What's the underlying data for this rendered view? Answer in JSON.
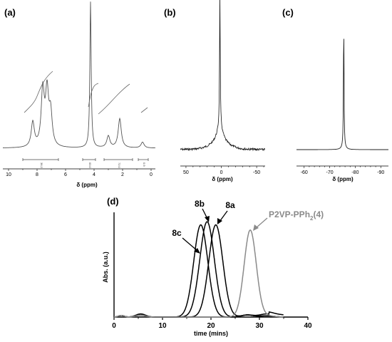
{
  "chart_data": [
    {
      "panel": "(a)",
      "type": "line",
      "xlabel": "δ (ppm)",
      "x_ticks": [
        "10",
        "8",
        "6",
        "4",
        "2",
        "0"
      ],
      "xlim": [
        10.4,
        -0.3
      ],
      "x_reversed": true,
      "peaks": [
        {
          "ppm": 8.3,
          "height": 0.17
        },
        {
          "ppm": 7.6,
          "height": 0.38
        },
        {
          "ppm": 7.3,
          "height": 0.36
        },
        {
          "ppm": 7.05,
          "height": 0.22
        },
        {
          "ppm": 4.25,
          "height": 1.0
        },
        {
          "ppm": 3.0,
          "height": 0.08
        },
        {
          "ppm": 2.2,
          "height": 0.2
        },
        {
          "ppm": 0.6,
          "height": 0.04
        }
      ],
      "integrals": [
        {
          "label": "36.2",
          "from": 9.0,
          "to": 6.5
        },
        {
          "label": "00.0",
          "from": 4.8,
          "to": 3.9
        },
        {
          "label": "72.0",
          "from": 3.3,
          "to": 1.3
        },
        {
          "label": "0.9",
          "from": 0.9,
          "to": 0.2
        }
      ]
    },
    {
      "panel": "(b)",
      "type": "line",
      "xlabel": "δ (ppm)",
      "x_ticks": [
        "50",
        "0",
        "-50"
      ],
      "xlim": [
        58,
        -62
      ],
      "x_reversed": true,
      "peaks": [
        {
          "ppm": 2,
          "height": 1.0,
          "broad_base": true
        }
      ]
    },
    {
      "panel": "(c)",
      "type": "line",
      "xlabel": "δ (ppm)",
      "x_ticks": [
        "-60",
        "-70",
        "-80",
        "-90"
      ],
      "xlim": [
        -57,
        -93
      ],
      "x_reversed": true,
      "peaks": [
        {
          "ppm": -75.5,
          "height": 1.0
        }
      ]
    },
    {
      "panel": "(d)",
      "type": "line",
      "xlabel": "time (mins)",
      "ylabel": "Abs. (a.u.)",
      "x_ticks": [
        "0",
        "10",
        "20",
        "30",
        "40"
      ],
      "xlim": [
        0,
        40
      ],
      "series": [
        {
          "name": "8c",
          "peak_time": 17.9,
          "height": 0.88,
          "color": "#000000"
        },
        {
          "name": "8b",
          "peak_time": 19.2,
          "height": 0.91,
          "color": "#000000"
        },
        {
          "name": "8a",
          "peak_time": 21.0,
          "height": 0.88,
          "color": "#000000"
        },
        {
          "name": "P2VP-PPh₂(4)",
          "peak_time": 28.1,
          "height": 0.83,
          "color": "#8a8a8a"
        }
      ],
      "annotations": [
        "8c",
        "8b",
        "8a",
        "P2VP-PPh",
        "2",
        "(4)"
      ]
    }
  ],
  "panel_labels": [
    "(a)",
    "(b)",
    "(c)",
    "(d)"
  ]
}
